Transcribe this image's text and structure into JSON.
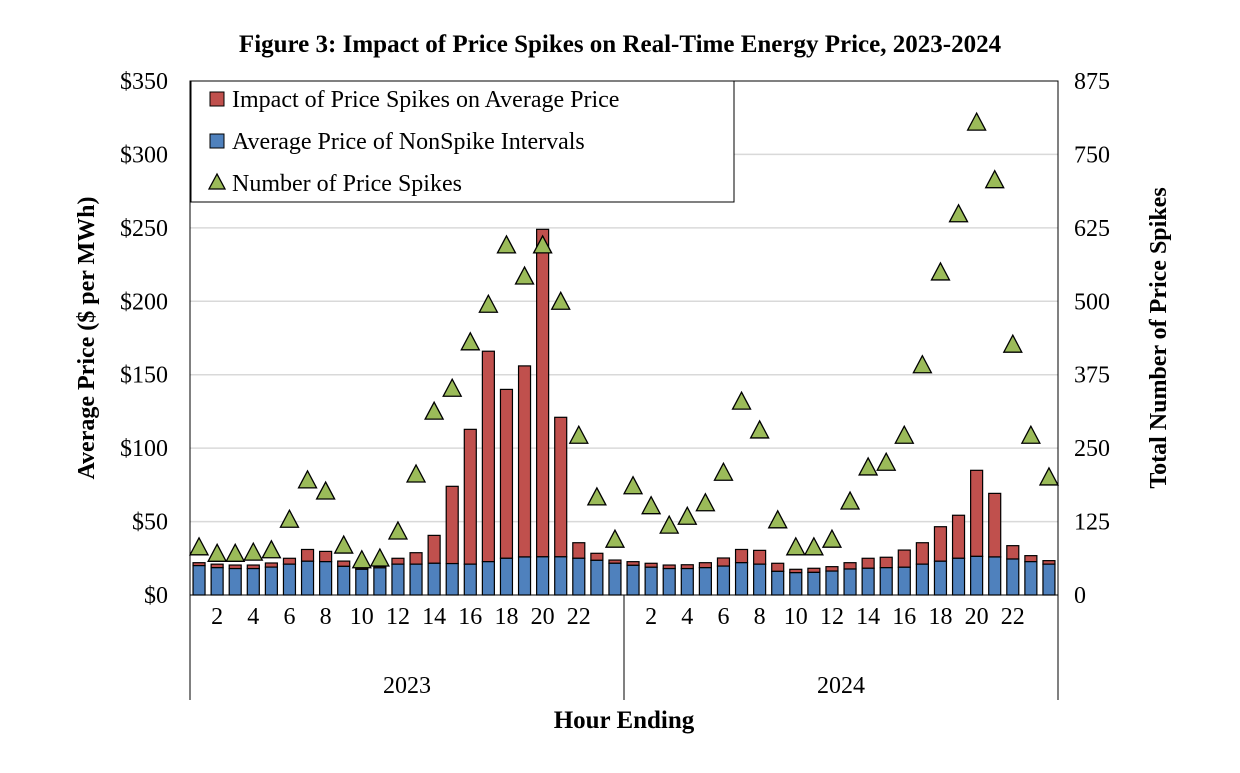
{
  "chart_data": {
    "type": "bar",
    "title": "Figure 3: Impact of Price Spikes on Real-Time Energy Price, 2023-2024",
    "xlabel": "Hour Ending",
    "ylabel": "Average Price ($ per MWh)",
    "y2label": "Total Number of Price Spikes",
    "ylim": [
      0,
      350
    ],
    "y2lim": [
      0,
      875
    ],
    "yticks": [
      "$0",
      "$50",
      "$100",
      "$150",
      "$200",
      "$250",
      "$300",
      "$350"
    ],
    "y2ticks": [
      "0",
      "125",
      "250",
      "375",
      "500",
      "625",
      "750",
      "875"
    ],
    "xtick_labels": [
      "2",
      "4",
      "6",
      "8",
      "10",
      "12",
      "14",
      "16",
      "18",
      "20",
      "22"
    ],
    "groups": [
      "2023",
      "2024"
    ],
    "hours": [
      1,
      2,
      3,
      4,
      5,
      6,
      7,
      8,
      9,
      10,
      11,
      12,
      13,
      14,
      15,
      16,
      17,
      18,
      19,
      20,
      21,
      22,
      23,
      24
    ],
    "legend_position": "top-left",
    "grid": true,
    "colors": {
      "spike_impact": "#c0504d",
      "nonspike": "#4f81bd",
      "spikes": "#9bbb59",
      "grid": "#d9d9d9"
    },
    "series": [
      {
        "name": "Impact of Price Spikes on Average Price",
        "kind": "stacked-bar-top",
        "note_values_are_total_heights": true,
        "values_2023": [
          22,
          21,
          20.4,
          20.4,
          21.8,
          25,
          31,
          29.7,
          23.1,
          18.5,
          19.5,
          25,
          28.8,
          40.6,
          74,
          112.8,
          166,
          140,
          156,
          249,
          121,
          35.6,
          28.4,
          23.8
        ],
        "values_2024": [
          22.7,
          21.6,
          20.4,
          20.6,
          22,
          25.2,
          31,
          30.4,
          21.6,
          17.5,
          18.2,
          19.3,
          22,
          25,
          25.7,
          30.6,
          35.6,
          46.5,
          54.3,
          84.9,
          69.2,
          33.6,
          26.8,
          23.4
        ]
      },
      {
        "name": "Average Price of NonSpike Intervals",
        "kind": "bar",
        "values_2023": [
          20,
          18.6,
          18,
          18,
          19,
          21,
          23,
          22.7,
          19.5,
          17.5,
          18.5,
          21,
          21,
          21.6,
          21.4,
          21,
          22.7,
          25,
          25.9,
          26,
          26,
          25,
          23.6,
          21.6
        ],
        "values_2024": [
          20.2,
          18.9,
          18,
          18,
          18.6,
          19.7,
          22,
          21,
          16.1,
          15.2,
          15.4,
          16.3,
          17.7,
          18.2,
          18.6,
          18.9,
          21,
          23,
          25,
          26.3,
          25.9,
          24.5,
          22.7,
          21
        ]
      },
      {
        "name": "Number of Price Spikes",
        "kind": "scatter-y2",
        "values_2023": [
          82,
          71,
          71,
          73,
          77,
          129,
          196,
          177,
          85,
          60,
          63,
          109,
          206,
          313,
          352,
          431,
          495,
          596,
          543,
          596,
          500,
          272,
          167,
          95
        ],
        "values_2024": [
          186,
          152,
          119,
          134,
          157,
          209,
          330,
          281,
          128,
          82,
          82,
          95,
          160,
          218,
          226,
          272,
          392,
          550,
          649,
          805,
          707,
          427,
          272,
          201
        ]
      }
    ]
  }
}
